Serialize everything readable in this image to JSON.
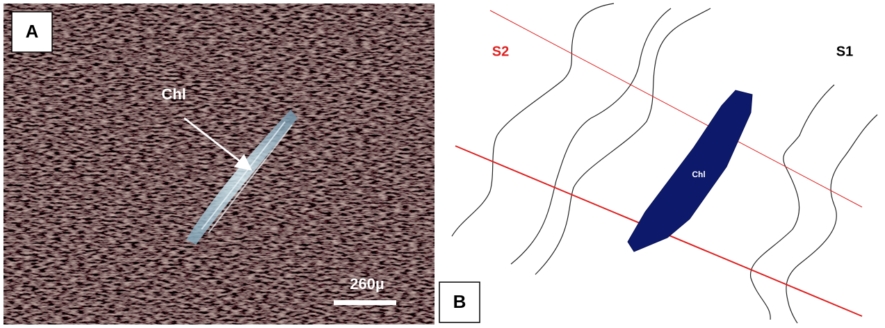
{
  "panel_a": {
    "label": "A",
    "annotation": "Chl",
    "scale_bar": "260µ"
  },
  "panel_b": {
    "label": "B",
    "s2_label": "S2",
    "s1_label": "S1",
    "mineral_label": "Chl"
  }
}
